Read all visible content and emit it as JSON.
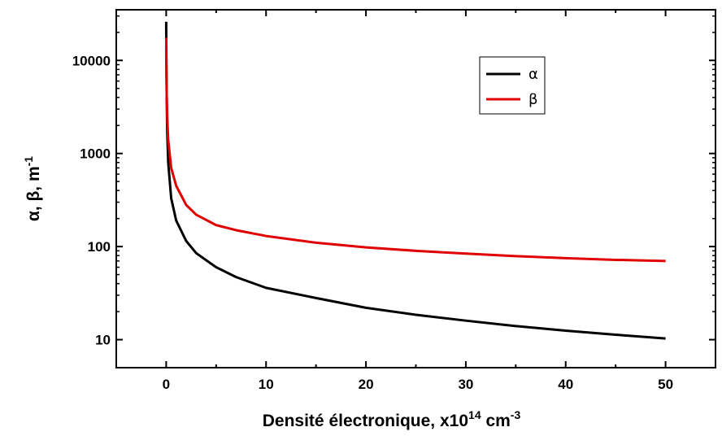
{
  "chart_data": {
    "type": "line",
    "x_scale": "linear",
    "y_scale": "log",
    "xlim": [
      -5,
      55
    ],
    "ylim": [
      5,
      35000
    ],
    "x_ticks": [
      0,
      10,
      20,
      30,
      40,
      50
    ],
    "y_ticks": [
      10,
      100,
      1000,
      10000
    ],
    "xlabel": {
      "main": "Densité électronique, ",
      "unit_prefix": "x10",
      "unit_exp": "14",
      "unit_mid": " cm",
      "unit_exp2": "-3"
    },
    "ylabel": {
      "main": "α, β, m",
      "exp": "-1"
    },
    "grid": false,
    "legend_position": "top-right",
    "series": [
      {
        "name": "α",
        "color": "#000000",
        "x": [
          0.0001,
          0.001,
          0.01,
          0.05,
          0.1,
          0.2,
          0.5,
          1,
          2,
          3,
          5,
          7,
          10,
          15,
          20,
          25,
          30,
          35,
          40,
          45,
          50
        ],
        "y": [
          26000,
          23000,
          16000,
          4000,
          1700,
          800,
          330,
          190,
          115,
          85,
          60,
          47,
          36,
          28,
          22,
          18.5,
          16,
          14,
          12.5,
          11.3,
          10.3
        ]
      },
      {
        "name": "β",
        "color": "#e00000",
        "x": [
          0.0001,
          0.001,
          0.01,
          0.05,
          0.1,
          0.2,
          0.5,
          1,
          2,
          3,
          5,
          7,
          10,
          15,
          20,
          25,
          30,
          35,
          40,
          45,
          50
        ],
        "y": [
          17500,
          14000,
          9500,
          4300,
          2500,
          1400,
          700,
          450,
          280,
          220,
          170,
          150,
          130,
          110,
          98,
          90,
          84,
          79,
          75,
          72,
          70
        ]
      }
    ]
  }
}
